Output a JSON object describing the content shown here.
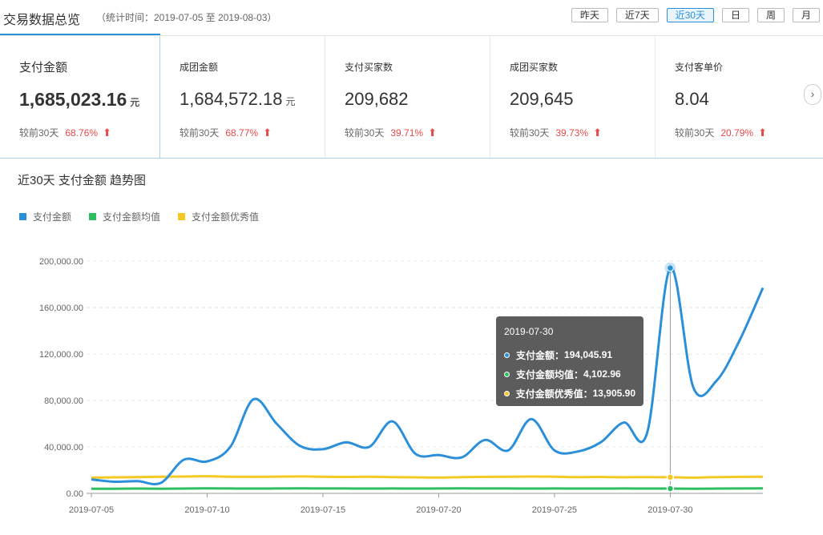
{
  "header": {
    "title": "交易数据总览",
    "period": "（统计时间：2019-07-05 至 2019-08-03）",
    "range_buttons": [
      "昨天",
      "近7天",
      "近30天",
      "日",
      "周",
      "月"
    ],
    "active_range": "近30天"
  },
  "metrics": [
    {
      "label": "支付金额",
      "value": "1,685,023.16",
      "unit": "元",
      "compare_label": "较前30天",
      "change": "68.76%",
      "trend": "up"
    },
    {
      "label": "成团金额",
      "value": "1,684,572.18",
      "unit": "元",
      "compare_label": "较前30天",
      "change": "68.77%",
      "trend": "up"
    },
    {
      "label": "支付买家数",
      "value": "209,682",
      "unit": "",
      "compare_label": "较前30天",
      "change": "39.71%",
      "trend": "up"
    },
    {
      "label": "成团买家数",
      "value": "209,645",
      "unit": "",
      "compare_label": "较前30天",
      "change": "39.73%",
      "trend": "up"
    },
    {
      "label": "支付客单价",
      "value": "8.04",
      "unit": "",
      "compare_label": "较前30天",
      "change": "20.79%",
      "trend": "up"
    }
  ],
  "chart_title": "近30天 支付金额 趋势图",
  "colors": {
    "accent": "#2b90d9",
    "up": "#e64a4a",
    "series1": "#2b90d9",
    "series2": "#2fbe5f",
    "series3": "#f5c825"
  },
  "tooltip": {
    "date": "2019-07-30",
    "rows": [
      {
        "label": "支付金额：",
        "value": "194,045.91",
        "color": "#2b90d9"
      },
      {
        "label": "支付金额均值：",
        "value": "4,102.96",
        "color": "#2fbe5f"
      },
      {
        "label": "支付金额优秀值：",
        "value": "13,905.90",
        "color": "#f5c825"
      }
    ]
  },
  "chart_data": {
    "type": "line",
    "x": [
      "2019-07-05",
      "2019-07-06",
      "2019-07-07",
      "2019-07-08",
      "2019-07-09",
      "2019-07-10",
      "2019-07-11",
      "2019-07-12",
      "2019-07-13",
      "2019-07-14",
      "2019-07-15",
      "2019-07-16",
      "2019-07-17",
      "2019-07-18",
      "2019-07-19",
      "2019-07-20",
      "2019-07-21",
      "2019-07-22",
      "2019-07-23",
      "2019-07-24",
      "2019-07-25",
      "2019-07-26",
      "2019-07-27",
      "2019-07-28",
      "2019-07-29",
      "2019-07-30",
      "2019-07-31",
      "2019-08-01",
      "2019-08-02",
      "2019-08-03"
    ],
    "x_ticks": [
      "2019-07-05",
      "2019-07-10",
      "2019-07-15",
      "2019-07-20",
      "2019-07-25",
      "2019-07-30"
    ],
    "series": [
      {
        "name": "支付金额",
        "color": "#2b90d9",
        "values": [
          12000,
          10000,
          10500,
          9000,
          29000,
          27500,
          40000,
          81000,
          60000,
          41000,
          38000,
          44000,
          40000,
          62000,
          34000,
          33000,
          31000,
          46000,
          37000,
          64000,
          37000,
          36000,
          44000,
          61000,
          52000,
          194045.91,
          91000,
          97000,
          132000,
          177000
        ]
      },
      {
        "name": "支付金额均值",
        "color": "#2fbe5f",
        "values": [
          4000,
          4000,
          4100,
          4000,
          4100,
          4300,
          4200,
          4100,
          4200,
          4300,
          4200,
          4200,
          4100,
          4200,
          4100,
          4200,
          4300,
          4200,
          4200,
          4100,
          4200,
          4100,
          4100,
          4200,
          4100,
          4102.96,
          4000,
          4100,
          4200,
          4300
        ]
      },
      {
        "name": "支付金额优秀值",
        "color": "#f5c825",
        "values": [
          13500,
          13800,
          14000,
          14300,
          14500,
          14700,
          14300,
          14200,
          14400,
          14600,
          14300,
          14100,
          14300,
          14000,
          13800,
          13600,
          14000,
          14200,
          14300,
          14500,
          14300,
          14000,
          14100,
          13900,
          14000,
          13905.9,
          13500,
          14000,
          14200,
          14300
        ]
      }
    ],
    "ylim": [
      0,
      200000
    ],
    "y_ticks": [
      "0.00",
      "40,000.00",
      "80,000.00",
      "120,000.00",
      "160,000.00",
      "200,000.00"
    ],
    "highlight_index": 25,
    "grid": true,
    "legend_position": "top-left"
  }
}
